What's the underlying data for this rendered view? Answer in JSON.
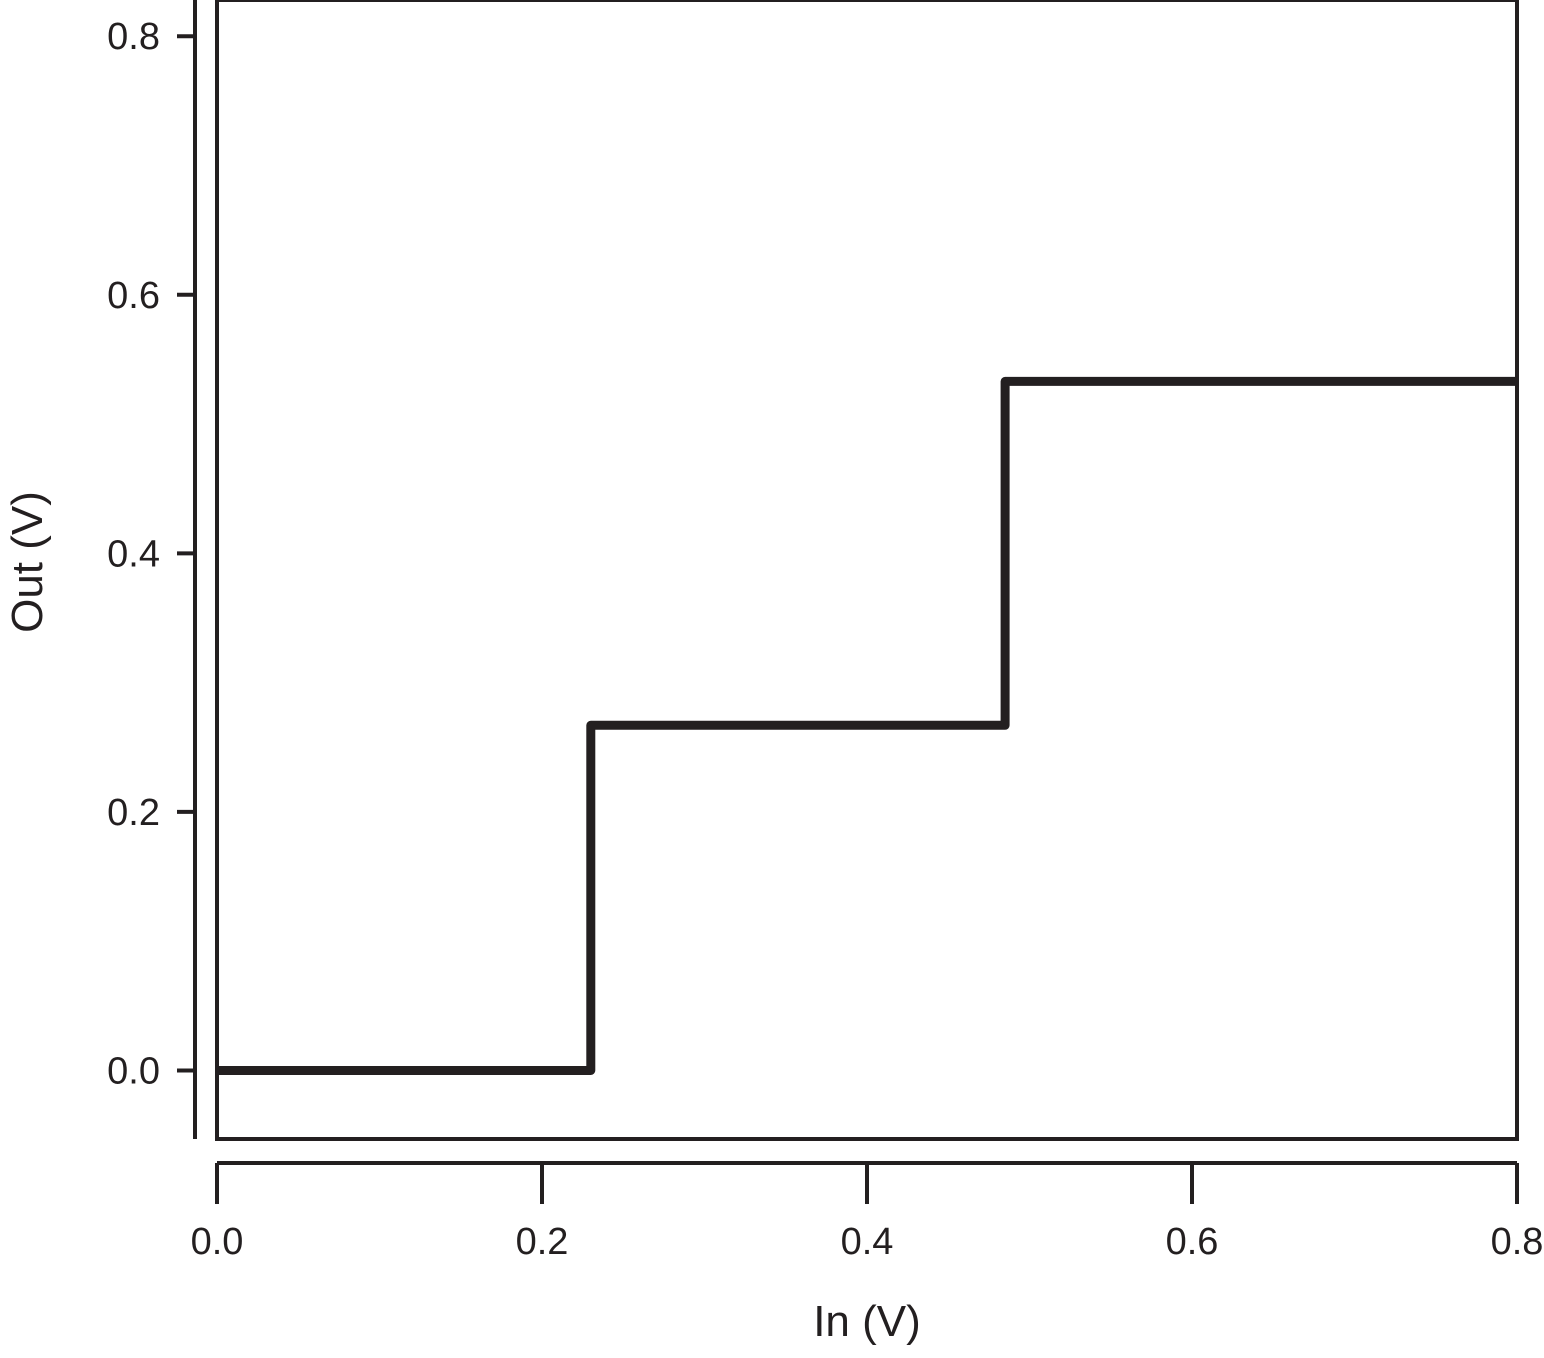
{
  "chart_data": {
    "type": "line",
    "step": true,
    "xlabel": "In (V)",
    "ylabel": "Out (V)",
    "xlim": [
      0.0,
      0.8
    ],
    "ylim": [
      -0.053,
      0.828
    ],
    "x_ticks": [
      "0.0",
      "0.2",
      "0.4",
      "0.6",
      "0.8"
    ],
    "y_ticks": [
      "0.0",
      "0.2",
      "0.4",
      "0.6",
      "0.8"
    ],
    "grid": false,
    "legend": "none",
    "series": [
      {
        "color": "#231f20",
        "points": [
          {
            "x": 0.0,
            "y": 0.0
          },
          {
            "x": 0.23,
            "y": 0.0
          },
          {
            "x": 0.23,
            "y": 0.267
          },
          {
            "x": 0.485,
            "y": 0.267
          },
          {
            "x": 0.485,
            "y": 0.533
          },
          {
            "x": 0.8,
            "y": 0.533
          }
        ]
      }
    ]
  }
}
